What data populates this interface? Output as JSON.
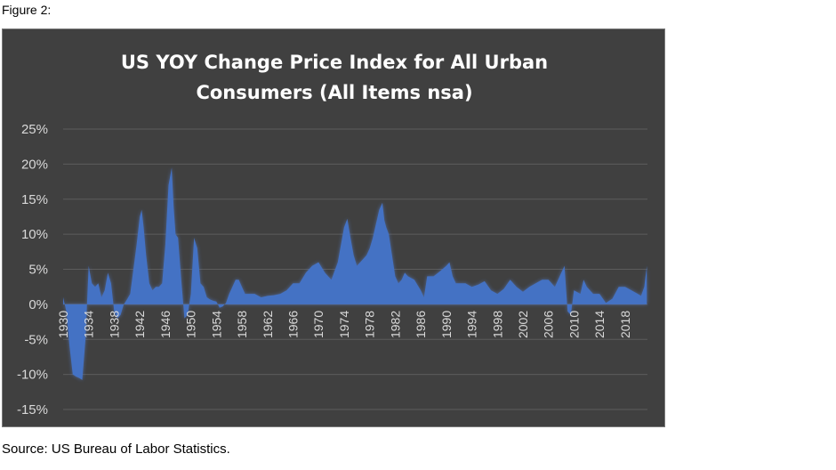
{
  "figure_label": "Figure 2:",
  "source_text": "Source: US Bureau of Labor Statistics.",
  "colors": {
    "background": "#404040",
    "area": "#4472c4",
    "glow": "#5b8ae6",
    "grid": "#5c5c5c",
    "text": "#d9d9d9"
  },
  "chart_data": {
    "type": "area",
    "title": "US YOY Change Price Index for All Urban Consumers (All Items nsa)",
    "title_lines": [
      "US YOY Change Price Index for All Urban",
      "Consumers (All Items nsa)"
    ],
    "xlabel": "",
    "ylabel": "",
    "xlim": [
      1930,
      2021.5
    ],
    "ylim": [
      -15,
      25
    ],
    "grid": true,
    "legend": "none",
    "y_ticks": [
      25,
      20,
      15,
      10,
      5,
      0,
      -5,
      -10,
      -15
    ],
    "y_tick_labels": [
      "25%",
      "20%",
      "15%",
      "10%",
      "5%",
      "0%",
      "-5%",
      "-10%",
      "-15%"
    ],
    "x_tick_labels": [
      "1930",
      "1934",
      "1938",
      "1942",
      "1946",
      "1950",
      "1954",
      "1958",
      "1962",
      "1966",
      "1970",
      "1974",
      "1978",
      "1982",
      "1986",
      "1990",
      "1994",
      "1998",
      "2002",
      "2006",
      "2010",
      "2014",
      "2018"
    ],
    "series": [
      {
        "x": [
          1930,
          1930.5,
          1931,
          1931.5,
          1932,
          1932.5,
          1933,
          1933.5,
          1934,
          1934.5,
          1935,
          1935.5,
          1936,
          1936.5,
          1937,
          1937.5,
          1938,
          1938.5,
          1939,
          1939.5,
          1940,
          1940.5,
          1941,
          1941.5,
          1942,
          1942.3,
          1942.6,
          1943,
          1943.5,
          1944,
          1944.5,
          1945,
          1945.5,
          1946,
          1946.5,
          1947,
          1947.3,
          1947.6,
          1948,
          1948.5,
          1949,
          1949.5,
          1950,
          1950.5,
          1951,
          1951.5,
          1952,
          1952.5,
          1953,
          1953.5,
          1954,
          1954.5,
          1955,
          1955.5,
          1956,
          1956.5,
          1957,
          1957.5,
          1958,
          1958.5,
          1959,
          1960,
          1961,
          1962,
          1963,
          1964,
          1965,
          1966,
          1967,
          1968,
          1969,
          1970,
          1971,
          1972,
          1973,
          1974,
          1974.5,
          1975,
          1975.5,
          1976,
          1977,
          1977.5,
          1978,
          1978.5,
          1979,
          1979.5,
          1980,
          1980.3,
          1980.6,
          1981,
          1981.5,
          1982,
          1982.5,
          1983,
          1983.5,
          1984,
          1985,
          1986,
          1986.5,
          1987,
          1988,
          1989,
          1990,
          1990.5,
          1991,
          1991.5,
          1992,
          1993,
          1994,
          1995,
          1996,
          1997,
          1998,
          1999,
          2000,
          2001,
          2002,
          2003,
          2004,
          2005,
          2006,
          2007,
          2008,
          2008.5,
          2009,
          2009.5,
          2010,
          2011,
          2011.5,
          2012,
          2013,
          2014,
          2015,
          2016,
          2017,
          2018,
          2019,
          2020,
          2020.5,
          2021,
          2021.4
        ],
        "values": [
          1,
          -1,
          -6,
          -10,
          -10.3,
          -10.5,
          -10.8,
          -5,
          5.5,
          3,
          2.5,
          3,
          1,
          2,
          4.5,
          3,
          -1,
          -2,
          -1.5,
          0,
          0.7,
          1.5,
          5,
          8.5,
          12.5,
          13.5,
          11,
          7,
          3,
          2,
          2.5,
          2.5,
          3,
          8.5,
          17,
          19.5,
          14,
          10,
          9.5,
          3.5,
          -2,
          -1.5,
          1.5,
          9.5,
          8,
          3,
          2.5,
          1,
          0.7,
          0.5,
          0.4,
          -0.5,
          -0.3,
          0.2,
          1.5,
          2.5,
          3.5,
          3.5,
          2.5,
          1.5,
          1.5,
          1.5,
          1,
          1.2,
          1.3,
          1.5,
          2,
          3,
          3,
          4.5,
          5.5,
          6,
          4.5,
          3.5,
          6,
          11,
          12.2,
          9.5,
          7,
          5.5,
          6.5,
          7,
          8,
          9.5,
          11.5,
          13.5,
          14.5,
          12,
          11,
          10,
          7,
          4,
          3,
          3.5,
          4.5,
          4,
          3.5,
          2,
          1,
          4,
          4,
          4.7,
          5.5,
          6,
          4,
          3,
          3,
          3,
          2.5,
          2.8,
          3.3,
          2,
          1.5,
          2.2,
          3.5,
          2.5,
          1.8,
          2.5,
          3,
          3.5,
          3.5,
          2.5,
          4.5,
          5.5,
          -1,
          -1.5,
          2,
          1.5,
          3.5,
          2.5,
          1.5,
          1.5,
          0.2,
          0.8,
          2.5,
          2.5,
          2,
          1.5,
          1.2,
          2.5,
          5.5
        ]
      }
    ]
  }
}
